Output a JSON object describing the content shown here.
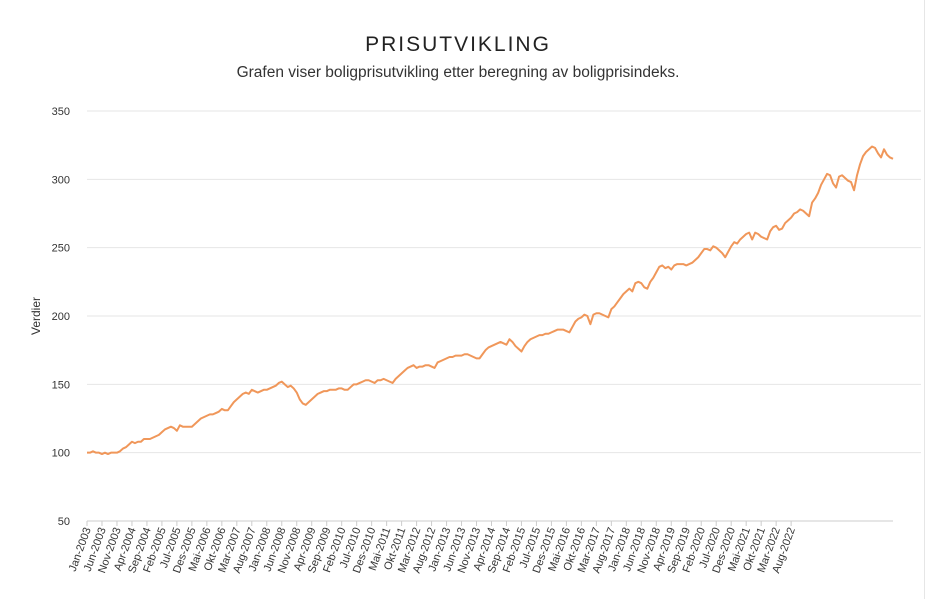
{
  "chart_data": {
    "type": "line",
    "title": "PRISUTVIKLING",
    "subtitle": "Grafen viser boligprisutvikling etter beregning av boligprisindeks.",
    "ylabel": "Verdier",
    "xlabel": "",
    "ylim": [
      50,
      350
    ],
    "yticks": [
      50,
      100,
      150,
      200,
      250,
      300,
      350
    ],
    "grid": true,
    "legend": "none",
    "color": "#f0975a",
    "x_tick_labels": [
      "Jan-2003",
      "Jun-2003",
      "Nov-2003",
      "Apr-2004",
      "Sep-2004",
      "Feb-2005",
      "Jul-2005",
      "Des-2005",
      "Mai-2006",
      "Okt-2006",
      "Mar-2007",
      "Aug-2007",
      "Jan-2008",
      "Jun-2008",
      "Nov-2008",
      "Apr-2009",
      "Sep-2009",
      "Feb-2010",
      "Jul-2010",
      "Des-2010",
      "Mai-2011",
      "Okt-2011",
      "Mar-2012",
      "Aug-2012",
      "Jan-2013",
      "Jun-2013",
      "Nov-2013",
      "Apr-2014",
      "Sep-2014",
      "Feb-2015",
      "Jul-2015",
      "Des-2015",
      "Mai-2016",
      "Okt-2016",
      "Mar-2017",
      "Aug-2017",
      "Jan-2018",
      "Jun-2018",
      "Nov-2018",
      "Apr-2019",
      "Sep-2019",
      "Feb-2020",
      "Jul-2020",
      "Des-2020",
      "Mai-2021",
      "Okt-2021",
      "Mar-2022",
      "Aug-2022"
    ],
    "series": [
      {
        "values": [
          100,
          100,
          101,
          100,
          100,
          99,
          100,
          99,
          100,
          100,
          100,
          101,
          103,
          104,
          106,
          108,
          107,
          108,
          108,
          110,
          110,
          110,
          111,
          112,
          113,
          115,
          117,
          118,
          119,
          118,
          116,
          120,
          119,
          119,
          119,
          119,
          121,
          123,
          125,
          126,
          127,
          128,
          128,
          129,
          130,
          132,
          131,
          131,
          134,
          137,
          139,
          141,
          143,
          144,
          143,
          146,
          145,
          144,
          145,
          146,
          146,
          147,
          148,
          149,
          151,
          152,
          150,
          148,
          149,
          147,
          144,
          139,
          136,
          135,
          137,
          139,
          141,
          143,
          144,
          145,
          145,
          146,
          146,
          146,
          147,
          147,
          146,
          146,
          148,
          150,
          150,
          151,
          152,
          153,
          153,
          152,
          151,
          153,
          153,
          154,
          153,
          152,
          151,
          154,
          156,
          158,
          160,
          162,
          163,
          164,
          162,
          163,
          163,
          164,
          164,
          163,
          162,
          166,
          167,
          168,
          169,
          170,
          170,
          171,
          171,
          171,
          172,
          172,
          171,
          170,
          169,
          169,
          172,
          175,
          177,
          178,
          179,
          180,
          181,
          180,
          179,
          183,
          181,
          178,
          176,
          174,
          178,
          181,
          183,
          184,
          185,
          186,
          186,
          187,
          187,
          188,
          189,
          190,
          190,
          190,
          189,
          188,
          192,
          196,
          198,
          199,
          201,
          200,
          194,
          201,
          202,
          202,
          201,
          200,
          199,
          205,
          207,
          210,
          213,
          216,
          218,
          220,
          218,
          224,
          225,
          224,
          221,
          220,
          225,
          228,
          232,
          236,
          237,
          235,
          236,
          234,
          237,
          238,
          238,
          238,
          237,
          238,
          239,
          241,
          243,
          246,
          249,
          249,
          248,
          251,
          250,
          248,
          246,
          243,
          247,
          251,
          254,
          253,
          256,
          258,
          260,
          261,
          256,
          261,
          260,
          258,
          257,
          256,
          262,
          265,
          266,
          263,
          264,
          268,
          270,
          272,
          275,
          276,
          278,
          277,
          275,
          273,
          283,
          286,
          290,
          296,
          300,
          304,
          303,
          297,
          294,
          302,
          303,
          301,
          299,
          298,
          292,
          303,
          311,
          317,
          320,
          322,
          324,
          323,
          319,
          316,
          322,
          318,
          316,
          315
        ]
      }
    ]
  }
}
